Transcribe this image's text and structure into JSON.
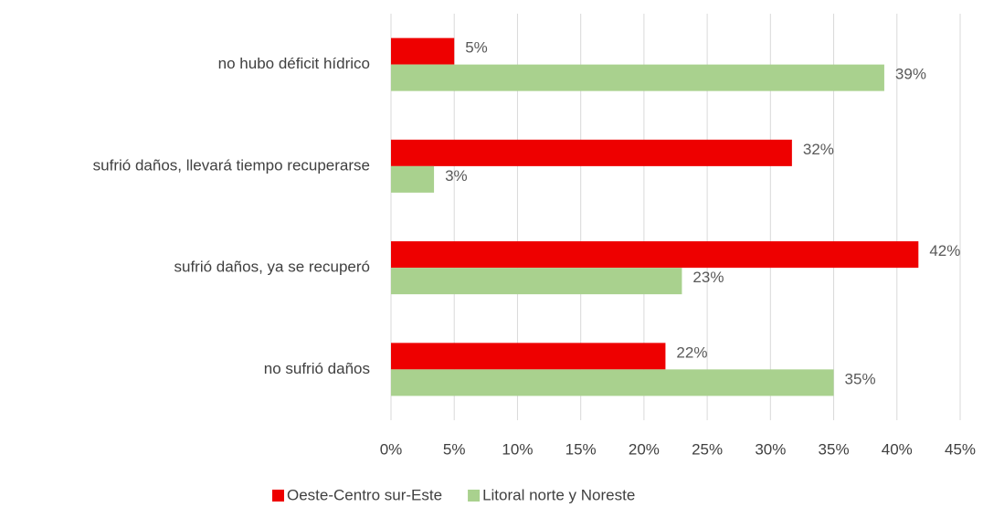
{
  "chart_data": {
    "type": "bar",
    "orientation": "horizontal",
    "categories": [
      "no hubo déficit hídrico",
      "sufrió daños, llevará tiempo recuperarse",
      "sufrió daños, ya se recuperó",
      "no sufrió daños"
    ],
    "series": [
      {
        "name": "Oeste-Centro sur-Este",
        "color": "#ee0000",
        "values": [
          5,
          31.7,
          41.7,
          21.7
        ],
        "value_labels": [
          "5%",
          "32%",
          "42%",
          "22%"
        ]
      },
      {
        "name": "Litoral norte y Noreste",
        "color": "#a9d18e",
        "values": [
          39,
          3.4,
          23,
          35
        ],
        "value_labels": [
          "39%",
          "3%",
          "23%",
          "35%"
        ]
      }
    ],
    "xlim": [
      0,
      45
    ],
    "xticks": [
      {
        "value": 0,
        "label": "0%"
      },
      {
        "value": 5,
        "label": "5%"
      },
      {
        "value": 10,
        "label": "10%"
      },
      {
        "value": 15,
        "label": "15%"
      },
      {
        "value": 20,
        "label": "20%"
      },
      {
        "value": 25,
        "label": "25%"
      },
      {
        "value": 30,
        "label": "30%"
      },
      {
        "value": 35,
        "label": "35%"
      },
      {
        "value": 40,
        "label": "40%"
      },
      {
        "value": 45,
        "label": "45%"
      }
    ],
    "grid": true,
    "legend": "bottom"
  }
}
